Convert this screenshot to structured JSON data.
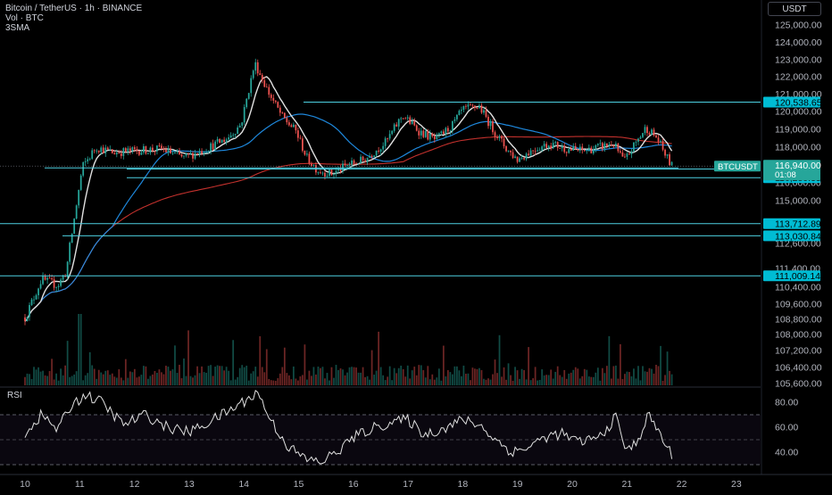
{
  "header": {
    "title": "Bitcoin / TetherUS · 1h · BINANCE",
    "volume_label": "Vol · BTC",
    "indicator_label": "3SMA",
    "currency": "USDT"
  },
  "colors": {
    "background": "#000000",
    "up": "#26a69a",
    "down": "#ef5350",
    "sma_fast": "#e0e0e0",
    "sma_mid": "#2196f3",
    "sma_slow": "#e53935",
    "level_line": "#4dd0e1",
    "level_label_bg": "#00bcd4",
    "last_price_bg": "#26a69a"
  },
  "chart_data": [
    {
      "type": "candlestick",
      "symbol": "BTCUSDT",
      "y_ticks": [
        125000,
        124000,
        123000,
        122000,
        121000,
        120000,
        119000,
        118000,
        117000,
        116000,
        115000,
        112600,
        111400,
        110400,
        109600,
        108800,
        108000,
        107200,
        106400,
        105600
      ],
      "y_tick_labels": [
        "125,000.00",
        "124,000.00",
        "123,000.00",
        "122,000.00",
        "121,000.00",
        "120,000.00",
        "119,000.00",
        "118,000.00",
        "117,000.00",
        "116,000.00",
        "115,000.00",
        "112,600.00",
        "111,400.00",
        "110,400.00",
        "109,600.00",
        "108,800.00",
        "108,000.00",
        "107,200.00",
        "106,400.00",
        "105,600.00"
      ],
      "x_ticks": [
        "10",
        "11",
        "12",
        "13",
        "14",
        "15",
        "16",
        "17",
        "18",
        "19",
        "20",
        "21",
        "22",
        "23"
      ],
      "anchor_points": [
        {
          "day": 10.0,
          "price": 108900
        },
        {
          "day": 10.3,
          "price": 110800
        },
        {
          "day": 10.6,
          "price": 110500
        },
        {
          "day": 10.75,
          "price": 111200
        },
        {
          "day": 10.85,
          "price": 113000
        },
        {
          "day": 11.05,
          "price": 116900
        },
        {
          "day": 11.3,
          "price": 118000
        },
        {
          "day": 11.6,
          "price": 117700
        },
        {
          "day": 12.0,
          "price": 117800
        },
        {
          "day": 12.5,
          "price": 117900
        },
        {
          "day": 12.9,
          "price": 117400
        },
        {
          "day": 13.3,
          "price": 117900
        },
        {
          "day": 13.7,
          "price": 118500
        },
        {
          "day": 13.95,
          "price": 119300
        },
        {
          "day": 14.2,
          "price": 122800
        },
        {
          "day": 14.45,
          "price": 121100
        },
        {
          "day": 14.7,
          "price": 119700
        },
        {
          "day": 14.95,
          "price": 118900
        },
        {
          "day": 15.15,
          "price": 117400
        },
        {
          "day": 15.35,
          "price": 116700
        },
        {
          "day": 15.6,
          "price": 116500
        },
        {
          "day": 15.9,
          "price": 117000
        },
        {
          "day": 16.2,
          "price": 117300
        },
        {
          "day": 16.6,
          "price": 118300
        },
        {
          "day": 16.9,
          "price": 119800
        },
        {
          "day": 17.2,
          "price": 118900
        },
        {
          "day": 17.5,
          "price": 118400
        },
        {
          "day": 17.8,
          "price": 119200
        },
        {
          "day": 18.0,
          "price": 120100
        },
        {
          "day": 18.3,
          "price": 120300
        },
        {
          "day": 18.55,
          "price": 119000
        },
        {
          "day": 18.8,
          "price": 117900
        },
        {
          "day": 19.0,
          "price": 117300
        },
        {
          "day": 19.3,
          "price": 117900
        },
        {
          "day": 19.6,
          "price": 118200
        },
        {
          "day": 19.9,
          "price": 117900
        },
        {
          "day": 20.2,
          "price": 117800
        },
        {
          "day": 20.5,
          "price": 118000
        },
        {
          "day": 20.75,
          "price": 118200
        },
        {
          "day": 20.95,
          "price": 117200
        },
        {
          "day": 21.15,
          "price": 118200
        },
        {
          "day": 21.35,
          "price": 119100
        },
        {
          "day": 21.55,
          "price": 118500
        },
        {
          "day": 21.75,
          "price": 117300
        },
        {
          "day": 21.82,
          "price": 116940
        }
      ],
      "horizontal_levels": [
        {
          "price": 120538.65,
          "label": "120,538.65"
        },
        {
          "price": 116772.84,
          "label": "116,772.84"
        },
        {
          "price": 116289.35,
          "label": "116,289.35"
        },
        {
          "price": 113712.89,
          "label": "113,712.89"
        },
        {
          "price": 113030.84,
          "label": "113,030.84"
        },
        {
          "price": 111009.14,
          "label": "111,009.14"
        }
      ],
      "last_price": {
        "value": 116940.0,
        "label": "116,940.00",
        "countdown": "01:08",
        "symbol_label": "BTCUSDT"
      },
      "moving_averages": [
        "fast",
        "mid",
        "slow"
      ],
      "volume": "bars along bottom of price pane"
    },
    {
      "type": "line",
      "title": "RSI",
      "y_ticks": [
        80,
        60,
        40
      ],
      "y_tick_labels": [
        "80.00",
        "60.00",
        "40.00"
      ],
      "band": [
        30,
        70
      ],
      "anchor_points": [
        {
          "day": 10.0,
          "value": 55
        },
        {
          "day": 10.3,
          "value": 70
        },
        {
          "day": 10.6,
          "value": 58
        },
        {
          "day": 10.85,
          "value": 78
        },
        {
          "day": 11.1,
          "value": 86
        },
        {
          "day": 11.4,
          "value": 80
        },
        {
          "day": 11.8,
          "value": 62
        },
        {
          "day": 12.2,
          "value": 70
        },
        {
          "day": 12.6,
          "value": 60
        },
        {
          "day": 13.0,
          "value": 56
        },
        {
          "day": 13.4,
          "value": 65
        },
        {
          "day": 13.8,
          "value": 75
        },
        {
          "day": 14.25,
          "value": 88
        },
        {
          "day": 14.5,
          "value": 65
        },
        {
          "day": 14.8,
          "value": 45
        },
        {
          "day": 15.1,
          "value": 35
        },
        {
          "day": 15.4,
          "value": 32
        },
        {
          "day": 15.7,
          "value": 40
        },
        {
          "day": 16.0,
          "value": 52
        },
        {
          "day": 16.4,
          "value": 60
        },
        {
          "day": 16.7,
          "value": 64
        },
        {
          "day": 17.0,
          "value": 66
        },
        {
          "day": 17.3,
          "value": 54
        },
        {
          "day": 17.7,
          "value": 60
        },
        {
          "day": 18.0,
          "value": 66
        },
        {
          "day": 18.3,
          "value": 62
        },
        {
          "day": 18.6,
          "value": 50
        },
        {
          "day": 18.9,
          "value": 40
        },
        {
          "day": 19.2,
          "value": 44
        },
        {
          "day": 19.5,
          "value": 52
        },
        {
          "day": 19.8,
          "value": 55
        },
        {
          "day": 20.1,
          "value": 48
        },
        {
          "day": 20.5,
          "value": 52
        },
        {
          "day": 20.8,
          "value": 68
        },
        {
          "day": 21.0,
          "value": 40
        },
        {
          "day": 21.2,
          "value": 50
        },
        {
          "day": 21.4,
          "value": 70
        },
        {
          "day": 21.6,
          "value": 55
        },
        {
          "day": 21.82,
          "value": 37
        }
      ]
    }
  ]
}
